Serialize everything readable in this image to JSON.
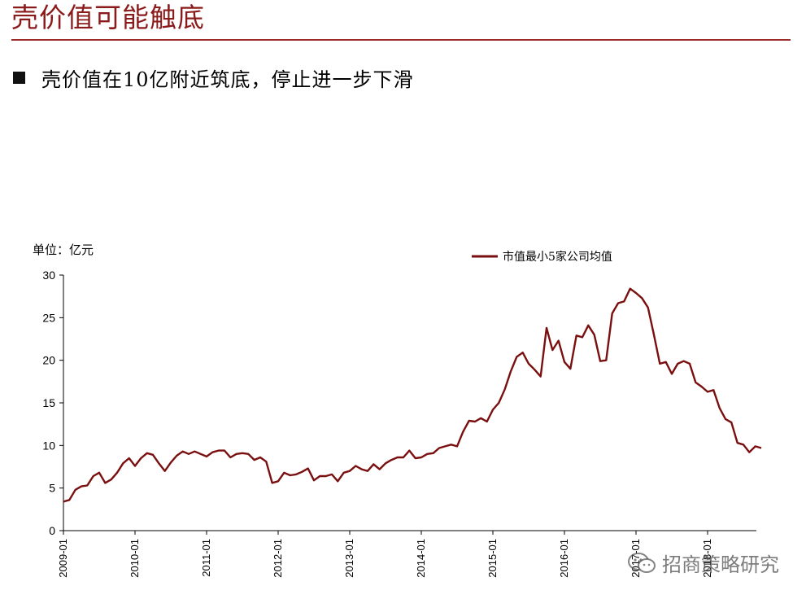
{
  "slide": {
    "title": "壳价值可能触底",
    "bullet": "壳价值在10亿附近筑底，停止进一步下滑",
    "watermark": "招商策略研究"
  },
  "chart_data": {
    "type": "line",
    "title": "",
    "unit_label": "单位：亿元",
    "xlabel": "",
    "ylabel": "",
    "ylim": [
      0,
      30
    ],
    "yticks": [
      0,
      5,
      10,
      15,
      20,
      25,
      30
    ],
    "xtick_labels": [
      "2009-01",
      "2010-01",
      "2011-01",
      "2012-01",
      "2013-01",
      "2014-01",
      "2015-01",
      "2016-01",
      "2017-01",
      "2018-01"
    ],
    "legend_position": "top-right",
    "grid": false,
    "color": "#7a0f0f",
    "series": [
      {
        "name": "市值最小5家公司均值",
        "x_start": "2009-01",
        "x_step": "month",
        "values": [
          3.4,
          3.6,
          4.8,
          5.2,
          5.3,
          6.4,
          6.8,
          5.6,
          6.0,
          6.8,
          7.9,
          8.5,
          7.6,
          8.5,
          9.1,
          8.9,
          7.9,
          7.0,
          8.0,
          8.8,
          9.3,
          9.0,
          9.3,
          9.0,
          8.7,
          9.2,
          9.4,
          9.4,
          8.6,
          9.0,
          9.1,
          9.0,
          8.3,
          8.6,
          8.1,
          5.6,
          5.8,
          6.8,
          6.5,
          6.6,
          6.9,
          7.3,
          5.9,
          6.4,
          6.4,
          6.6,
          5.8,
          6.8,
          7.0,
          7.6,
          7.2,
          7.0,
          7.8,
          7.2,
          7.9,
          8.3,
          8.6,
          8.6,
          9.4,
          8.5,
          8.6,
          9.0,
          9.1,
          9.7,
          9.9,
          10.1,
          9.9,
          11.6,
          12.9,
          12.8,
          13.2,
          12.8,
          14.2,
          15.0,
          16.6,
          18.7,
          20.4,
          20.9,
          19.6,
          18.9,
          18.1,
          23.8,
          21.2,
          22.3,
          19.8,
          19.0,
          22.9,
          22.7,
          24.1,
          23.0,
          19.9,
          20.0,
          25.5,
          26.7,
          26.9,
          28.4,
          27.9,
          27.3,
          26.2,
          23.0,
          19.6,
          19.8,
          18.4,
          19.6,
          19.9,
          19.6,
          17.4,
          16.9,
          16.3,
          16.5,
          14.4,
          13.1,
          12.7,
          10.3,
          10.1,
          9.2,
          9.9,
          9.7
        ]
      }
    ]
  }
}
